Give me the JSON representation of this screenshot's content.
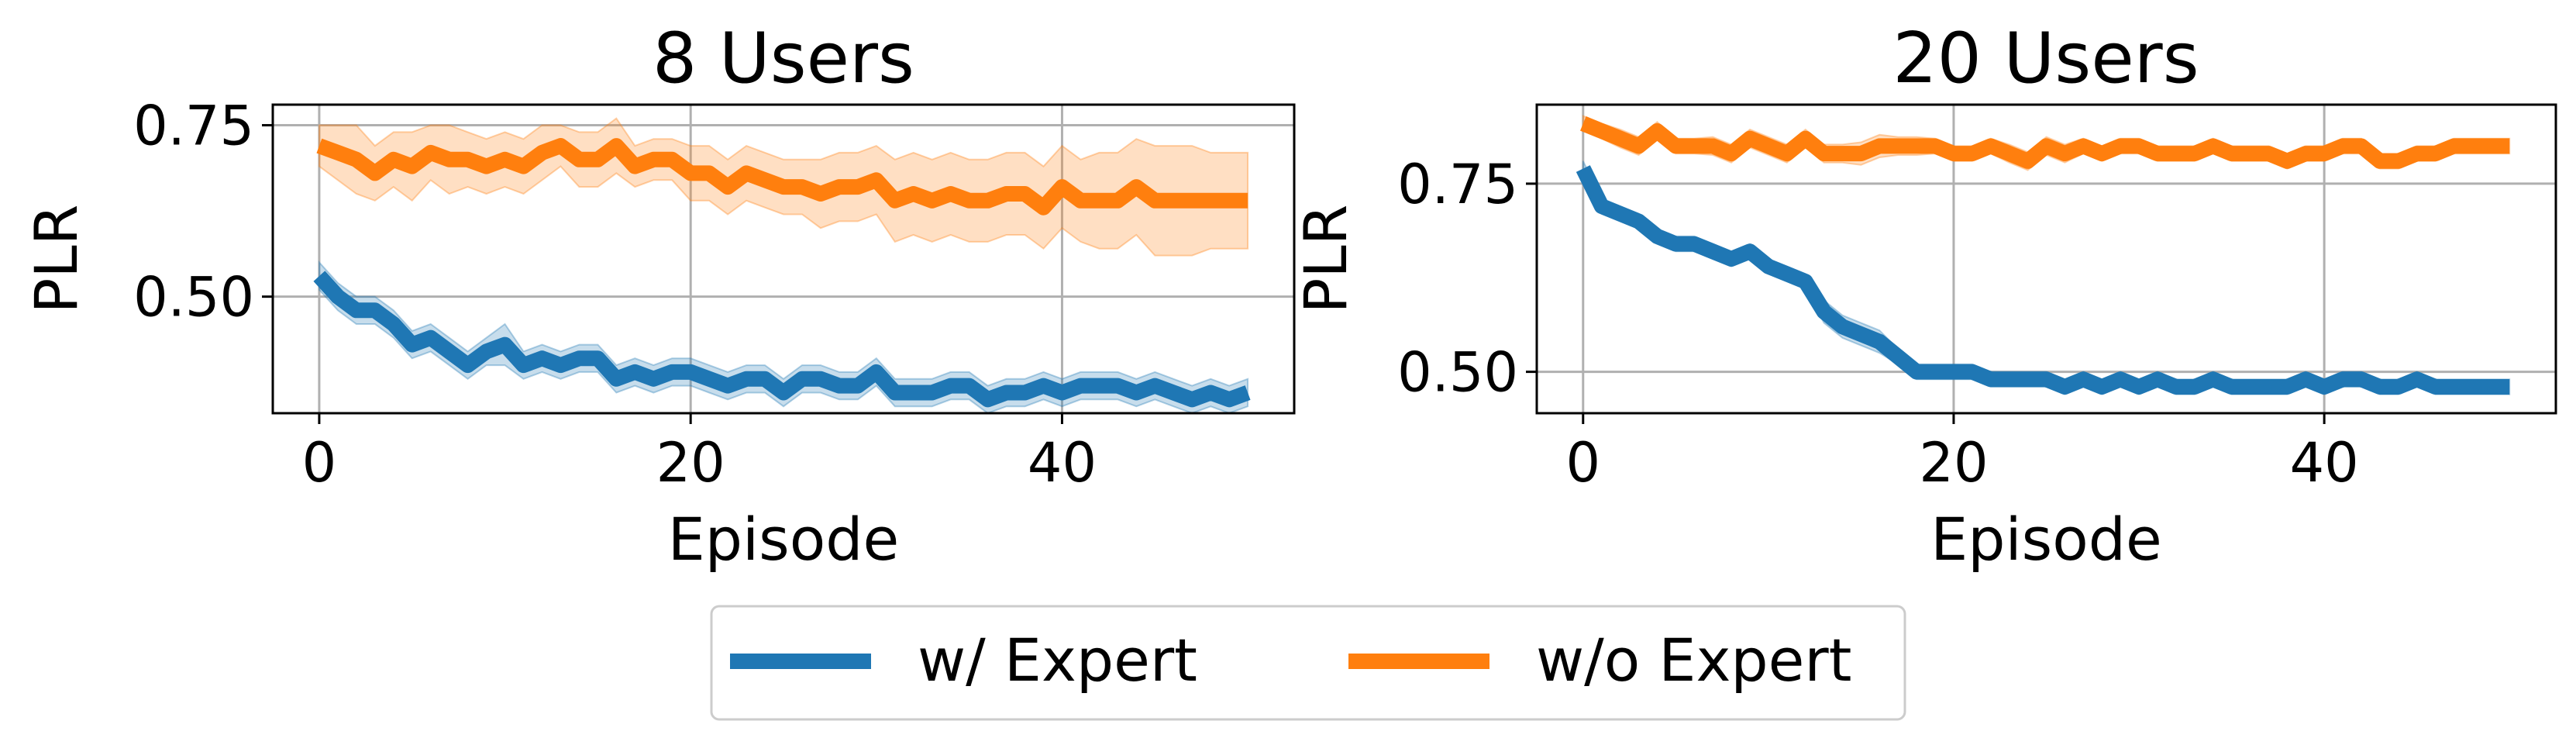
{
  "colors": {
    "blue": "#1f77b4",
    "orange": "#ff7f0e"
  },
  "legend": {
    "placement": "bottom-center",
    "entries": [
      {
        "label": "w/ Expert",
        "color": "#1f77b4"
      },
      {
        "label": "w/o Expert",
        "color": "#ff7f0e"
      }
    ]
  },
  "chart_data": [
    {
      "type": "line",
      "title": "8 Users",
      "xlabel": "Episode",
      "ylabel": "PLR",
      "xlim": [
        -2.5,
        52.5
      ],
      "ylim": [
        0.33,
        0.78
      ],
      "xticks": [
        0,
        20,
        40
      ],
      "yticks": [
        0.5,
        0.75
      ],
      "ytick_labels": [
        "0.50",
        "0.75"
      ],
      "grid": true,
      "x": [
        0,
        1,
        2,
        3,
        4,
        5,
        6,
        7,
        8,
        9,
        10,
        11,
        12,
        13,
        14,
        15,
        16,
        17,
        18,
        19,
        20,
        21,
        22,
        23,
        24,
        25,
        26,
        27,
        28,
        29,
        30,
        31,
        32,
        33,
        34,
        35,
        36,
        37,
        38,
        39,
        40,
        41,
        42,
        43,
        44,
        45,
        46,
        47,
        48,
        49,
        50
      ],
      "series": [
        {
          "name": "w/ Expert",
          "color": "#1f77b4",
          "values": [
            0.53,
            0.5,
            0.48,
            0.48,
            0.46,
            0.43,
            0.44,
            0.42,
            0.4,
            0.42,
            0.43,
            0.4,
            0.41,
            0.4,
            0.41,
            0.41,
            0.38,
            0.39,
            0.38,
            0.39,
            0.39,
            0.38,
            0.37,
            0.38,
            0.38,
            0.36,
            0.38,
            0.38,
            0.37,
            0.37,
            0.39,
            0.36,
            0.36,
            0.36,
            0.37,
            0.37,
            0.35,
            0.36,
            0.36,
            0.37,
            0.36,
            0.37,
            0.37,
            0.37,
            0.36,
            0.37,
            0.36,
            0.35,
            0.36,
            0.35,
            0.36
          ],
          "band": [
            0.02,
            0.02,
            0.02,
            0.02,
            0.02,
            0.02,
            0.02,
            0.02,
            0.02,
            0.02,
            0.03,
            0.02,
            0.02,
            0.02,
            0.02,
            0.02,
            0.02,
            0.02,
            0.02,
            0.02,
            0.02,
            0.02,
            0.02,
            0.02,
            0.02,
            0.02,
            0.02,
            0.02,
            0.02,
            0.02,
            0.02,
            0.02,
            0.02,
            0.02,
            0.02,
            0.02,
            0.02,
            0.02,
            0.02,
            0.02,
            0.02,
            0.02,
            0.02,
            0.02,
            0.02,
            0.02,
            0.02,
            0.02,
            0.02,
            0.02,
            0.02
          ]
        },
        {
          "name": "w/o Expert",
          "color": "#ff7f0e",
          "values": [
            0.72,
            0.71,
            0.7,
            0.68,
            0.7,
            0.69,
            0.71,
            0.7,
            0.7,
            0.69,
            0.7,
            0.69,
            0.71,
            0.72,
            0.7,
            0.7,
            0.72,
            0.69,
            0.7,
            0.7,
            0.68,
            0.68,
            0.66,
            0.68,
            0.67,
            0.66,
            0.66,
            0.65,
            0.66,
            0.66,
            0.67,
            0.64,
            0.65,
            0.64,
            0.65,
            0.64,
            0.64,
            0.65,
            0.65,
            0.63,
            0.66,
            0.64,
            0.64,
            0.64,
            0.66,
            0.64,
            0.64,
            0.64,
            0.64,
            0.64,
            0.64
          ],
          "band": [
            0.03,
            0.04,
            0.05,
            0.04,
            0.04,
            0.05,
            0.04,
            0.05,
            0.04,
            0.04,
            0.04,
            0.04,
            0.04,
            0.03,
            0.04,
            0.04,
            0.04,
            0.03,
            0.03,
            0.03,
            0.04,
            0.04,
            0.04,
            0.04,
            0.04,
            0.04,
            0.04,
            0.05,
            0.05,
            0.05,
            0.05,
            0.06,
            0.06,
            0.06,
            0.06,
            0.06,
            0.06,
            0.06,
            0.06,
            0.06,
            0.06,
            0.06,
            0.07,
            0.07,
            0.07,
            0.08,
            0.08,
            0.08,
            0.07,
            0.07,
            0.07
          ]
        }
      ]
    },
    {
      "type": "line",
      "title": "20 Users",
      "xlabel": "Episode",
      "ylabel": "PLR",
      "xlim": [
        -2.5,
        52.5
      ],
      "ylim": [
        0.445,
        0.855
      ],
      "xticks": [
        0,
        20,
        40
      ],
      "yticks": [
        0.5,
        0.75
      ],
      "ytick_labels": [
        "0.50",
        "0.75"
      ],
      "grid": true,
      "x": [
        0,
        1,
        2,
        3,
        4,
        5,
        6,
        7,
        8,
        9,
        10,
        11,
        12,
        13,
        14,
        15,
        16,
        17,
        18,
        19,
        20,
        21,
        22,
        23,
        24,
        25,
        26,
        27,
        28,
        29,
        30,
        31,
        32,
        33,
        34,
        35,
        36,
        37,
        38,
        39,
        40,
        41,
        42,
        43,
        44,
        45,
        46,
        47,
        48,
        49,
        50
      ],
      "series": [
        {
          "name": "w/ Expert",
          "color": "#1f77b4",
          "values": [
            0.77,
            0.72,
            0.71,
            0.7,
            0.68,
            0.67,
            0.67,
            0.66,
            0.65,
            0.66,
            0.64,
            0.63,
            0.62,
            0.58,
            0.56,
            0.55,
            0.54,
            0.52,
            0.5,
            0.5,
            0.5,
            0.5,
            0.49,
            0.49,
            0.49,
            0.49,
            0.48,
            0.49,
            0.48,
            0.49,
            0.48,
            0.49,
            0.48,
            0.48,
            0.49,
            0.48,
            0.48,
            0.48,
            0.48,
            0.49,
            0.48,
            0.49,
            0.49,
            0.48,
            0.48,
            0.49,
            0.48,
            0.48,
            0.48,
            0.48,
            0.48
          ],
          "band": [
            0.01,
            0.01,
            0.01,
            0.01,
            0.01,
            0.01,
            0.01,
            0.01,
            0.01,
            0.01,
            0.01,
            0.01,
            0.01,
            0.015,
            0.015,
            0.015,
            0.015,
            0.01,
            0.01,
            0.01,
            0.01,
            0.01,
            0.01,
            0.01,
            0.01,
            0.01,
            0.01,
            0.01,
            0.01,
            0.01,
            0.01,
            0.01,
            0.01,
            0.01,
            0.01,
            0.01,
            0.01,
            0.01,
            0.01,
            0.01,
            0.01,
            0.01,
            0.01,
            0.01,
            0.01,
            0.01,
            0.01,
            0.01,
            0.01,
            0.01,
            0.01
          ]
        },
        {
          "name": "w/o Expert",
          "color": "#ff7f0e",
          "values": [
            0.83,
            0.82,
            0.81,
            0.8,
            0.82,
            0.8,
            0.8,
            0.8,
            0.79,
            0.81,
            0.8,
            0.79,
            0.81,
            0.79,
            0.79,
            0.79,
            0.8,
            0.8,
            0.8,
            0.8,
            0.79,
            0.79,
            0.8,
            0.79,
            0.78,
            0.8,
            0.79,
            0.8,
            0.79,
            0.8,
            0.8,
            0.79,
            0.79,
            0.79,
            0.8,
            0.79,
            0.79,
            0.79,
            0.78,
            0.79,
            0.79,
            0.8,
            0.8,
            0.78,
            0.78,
            0.79,
            0.79,
            0.8,
            0.8,
            0.8,
            0.8
          ],
          "band": [
            0.01,
            0.01,
            0.012,
            0.012,
            0.012,
            0.01,
            0.01,
            0.012,
            0.012,
            0.012,
            0.012,
            0.012,
            0.012,
            0.012,
            0.012,
            0.015,
            0.015,
            0.012,
            0.012,
            0.01,
            0.01,
            0.01,
            0.01,
            0.012,
            0.012,
            0.012,
            0.012,
            0.01,
            0.01,
            0.01,
            0.01,
            0.01,
            0.01,
            0.01,
            0.01,
            0.01,
            0.01,
            0.01,
            0.01,
            0.01,
            0.01,
            0.01,
            0.01,
            0.01,
            0.01,
            0.01,
            0.01,
            0.01,
            0.01,
            0.01,
            0.01
          ]
        }
      ]
    }
  ]
}
